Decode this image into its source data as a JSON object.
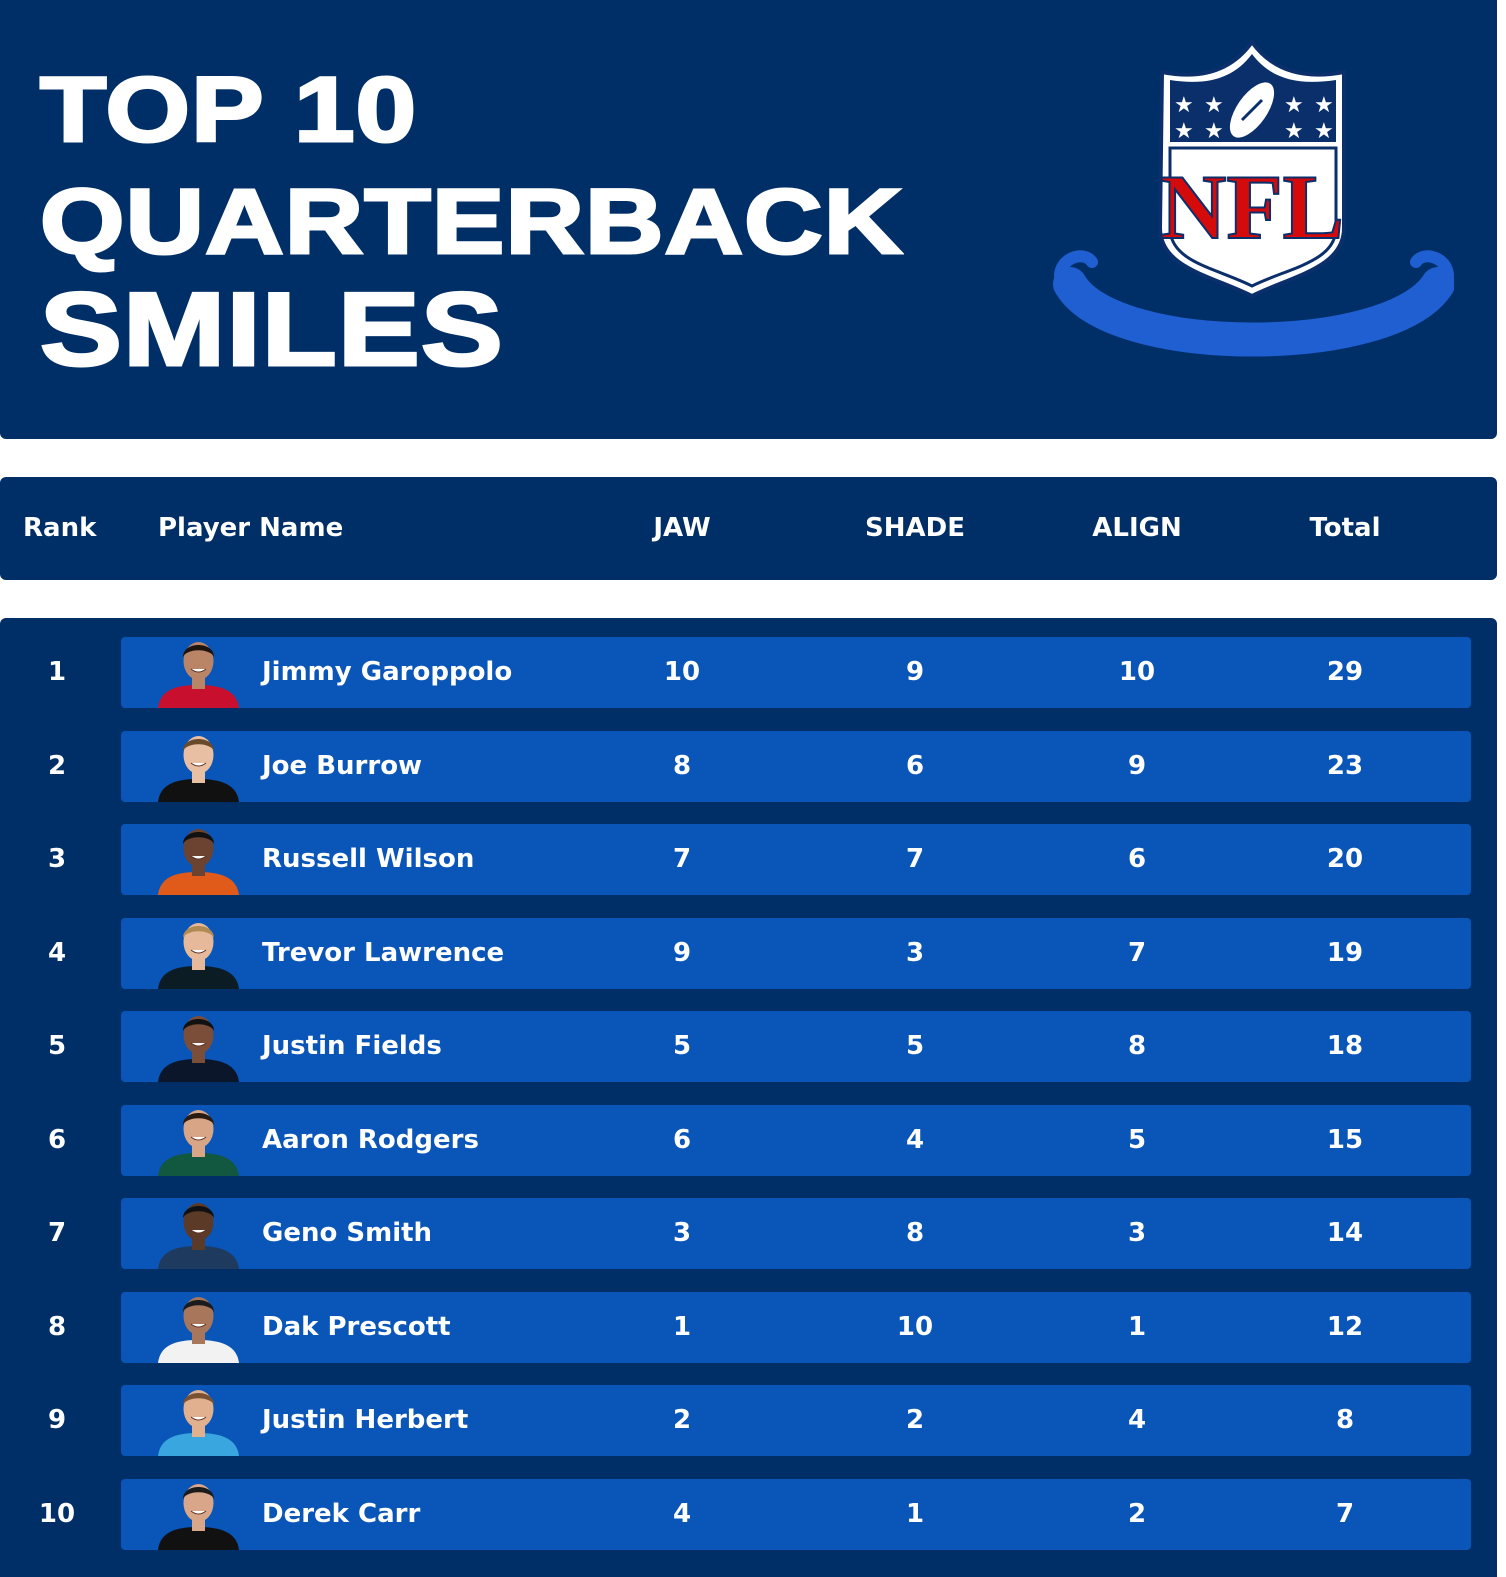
{
  "header": {
    "title_lines": [
      "TOP 10",
      "QUARTERBACK",
      "SMILES"
    ],
    "logo_text": "NFL"
  },
  "columns": {
    "rank": "Rank",
    "player": "Player Name",
    "jaw": "JAW",
    "shade": "SHADE",
    "align": "ALIGN",
    "total": "Total"
  },
  "colors": {
    "navy": "#002f67",
    "row_blue": "#0a55b8",
    "smile_blue": "#1f5fd1",
    "nfl_red": "#d50a0a"
  },
  "players": [
    {
      "rank": "1",
      "name": "Jimmy Garoppolo",
      "jaw": "10",
      "shade": "9",
      "align": "10",
      "total": "29",
      "jersey": "#c8102e",
      "skin": "#b98566",
      "hair": "#1e140e"
    },
    {
      "rank": "2",
      "name": "Joe Burrow",
      "jaw": "8",
      "shade": "6",
      "align": "9",
      "total": "23",
      "jersey": "#111111",
      "skin": "#e8bfa2",
      "hair": "#6b4a2c"
    },
    {
      "rank": "3",
      "name": "Russell Wilson",
      "jaw": "7",
      "shade": "7",
      "align": "6",
      "total": "20",
      "jersey": "#e05a1a",
      "skin": "#6b4330",
      "hair": "#111111"
    },
    {
      "rank": "4",
      "name": "Trevor Lawrence",
      "jaw": "9",
      "shade": "3",
      "align": "7",
      "total": "19",
      "jersey": "#0b1c24",
      "skin": "#e5b999",
      "hair": "#b08a52"
    },
    {
      "rank": "5",
      "name": "Justin Fields",
      "jaw": "5",
      "shade": "5",
      "align": "8",
      "total": "18",
      "jersey": "#0b162a",
      "skin": "#7a4e38",
      "hair": "#111111"
    },
    {
      "rank": "6",
      "name": "Aaron Rodgers",
      "jaw": "6",
      "shade": "4",
      "align": "5",
      "total": "15",
      "jersey": "#125740",
      "skin": "#d9a587",
      "hair": "#2a1a10"
    },
    {
      "rank": "7",
      "name": "Geno Smith",
      "jaw": "3",
      "shade": "8",
      "align": "3",
      "total": "14",
      "jersey": "#1f3a5f",
      "skin": "#5c3a28",
      "hair": "#111111"
    },
    {
      "rank": "8",
      "name": "Dak Prescott",
      "jaw": "1",
      "shade": "10",
      "align": "1",
      "total": "12",
      "jersey": "#f2f2f2",
      "skin": "#a8765a",
      "hair": "#1b1b1b"
    },
    {
      "rank": "9",
      "name": "Justin Herbert",
      "jaw": "2",
      "shade": "2",
      "align": "4",
      "total": "8",
      "jersey": "#39a6e0",
      "skin": "#e0b08f",
      "hair": "#7a5232"
    },
    {
      "rank": "10",
      "name": "Derek Carr",
      "jaw": "4",
      "shade": "1",
      "align": "2",
      "total": "7",
      "jersey": "#111111",
      "skin": "#d9a68a",
      "hair": "#1b1b1b"
    }
  ]
}
